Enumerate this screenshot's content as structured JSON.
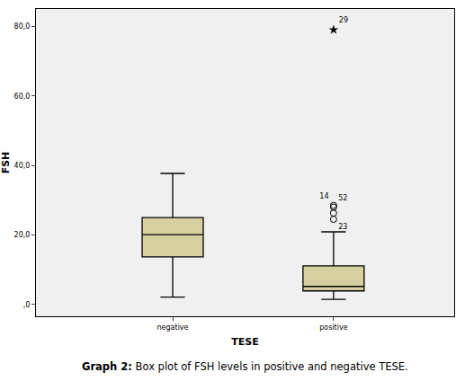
{
  "chart_data": {
    "type": "box",
    "x_label": "TESE",
    "y_label": "FSH",
    "caption": {
      "label": "Graph 2:",
      "text": "Box plot of FSH levels in positive and negative TESE."
    },
    "categories": [
      "negative",
      "positive"
    ],
    "color": "#d6cf9f",
    "ylim": [
      -3.4,
      85
    ],
    "yticks": [
      {
        "value": 0,
        "label": ",0"
      },
      {
        "value": 20,
        "label": "20,0"
      },
      {
        "value": 40,
        "label": "40,0"
      },
      {
        "value": 60,
        "label": "60,0"
      },
      {
        "value": 80,
        "label": "80,0"
      }
    ],
    "grid": false,
    "boxes": [
      {
        "lowerfence": 2.1,
        "q1": 13.7,
        "median": 20.1,
        "q3": 25.0,
        "upperfence": 37.7,
        "outliers": [],
        "extremes": []
      },
      {
        "lowerfence": 1.5,
        "q1": 3.9,
        "median": 5.2,
        "q3": 11.1,
        "upperfence": 20.9,
        "outliers": [
          {
            "value": 28.5,
            "label": "14"
          },
          {
            "value": 28.0,
            "label": "52"
          },
          {
            "value": 26.3,
            "label": null
          },
          {
            "value": 24.5,
            "label": "23"
          }
        ],
        "extremes": [
          {
            "value": 79.0,
            "label": "29"
          }
        ]
      }
    ]
  }
}
